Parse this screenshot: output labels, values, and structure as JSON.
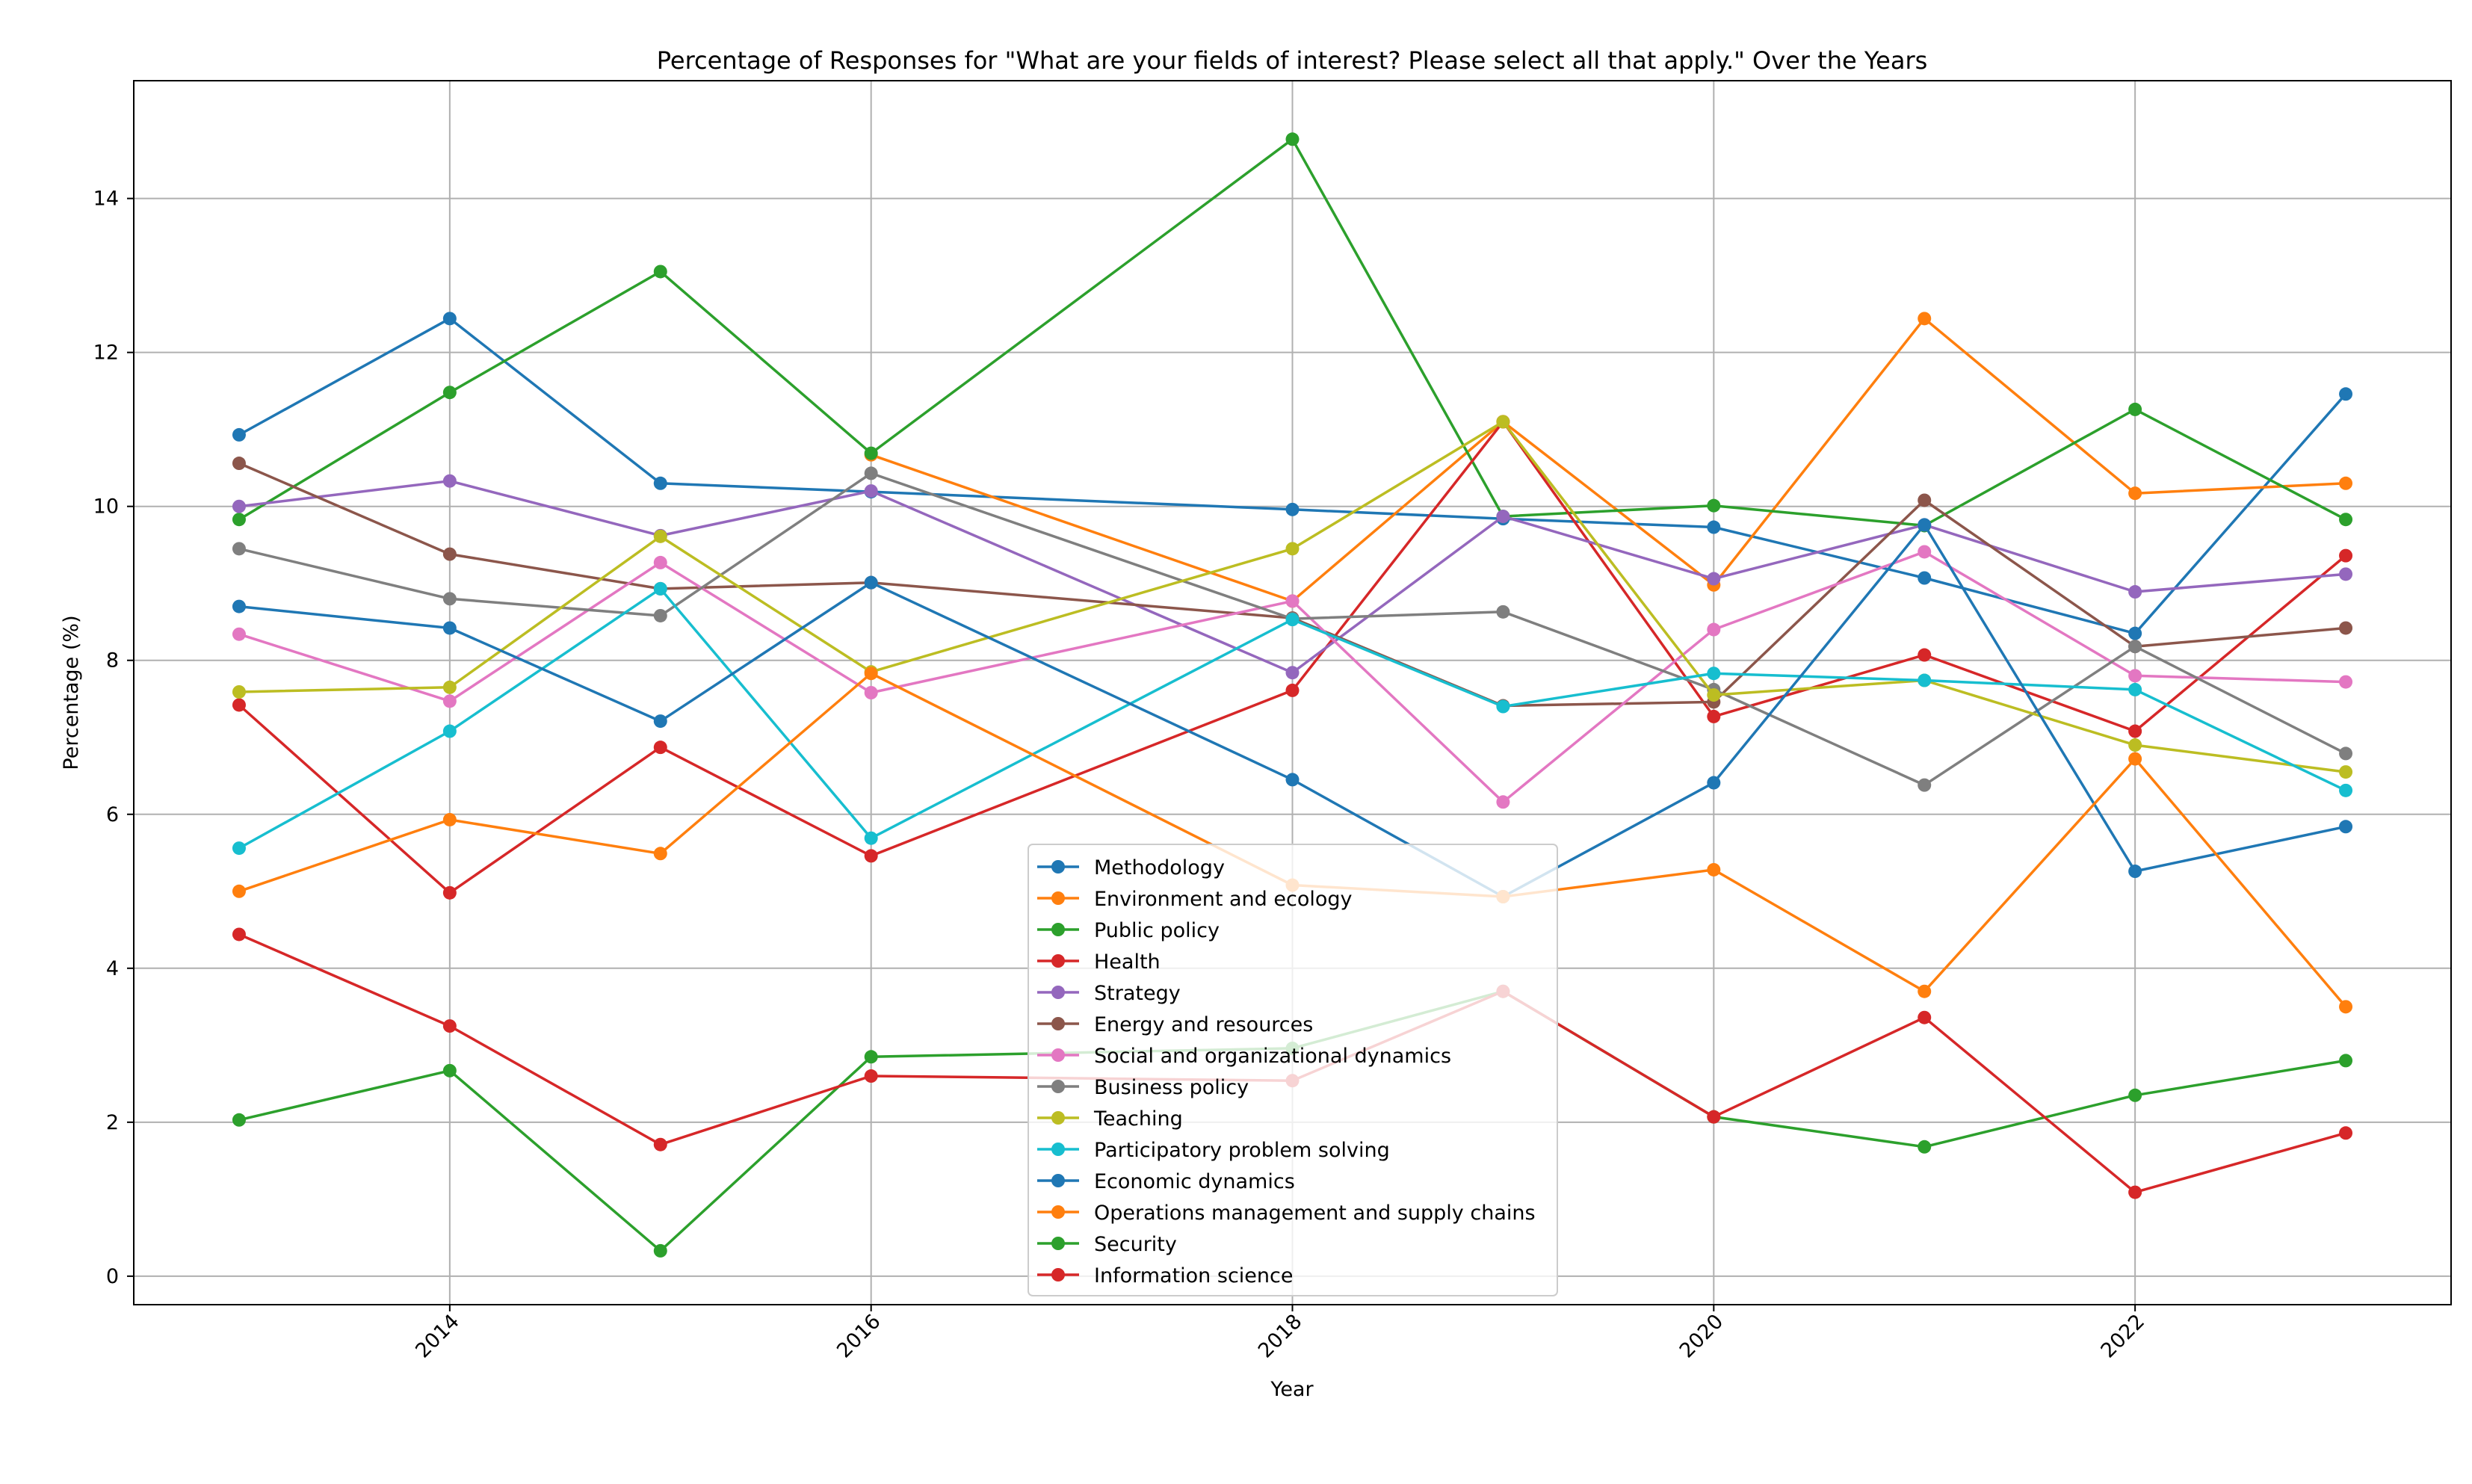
{
  "chart_data": {
    "type": "line",
    "title": "Percentage of Responses for \"What are your fields of interest? Please select all that apply.\" Over the Years",
    "xlabel": "Year",
    "ylabel": "Percentage (%)",
    "x": [
      2013,
      2014,
      2015,
      2016,
      2018,
      2019,
      2020,
      2021,
      2022,
      2023
    ],
    "x_ticks": [
      2014,
      2016,
      2018,
      2020,
      2022
    ],
    "x_tick_labels": [
      "2014",
      "2016",
      "2018",
      "2020",
      "2022"
    ],
    "y_ticks": [
      0,
      2,
      4,
      6,
      8,
      10,
      12,
      14
    ],
    "y_tick_labels": [
      "0",
      "2",
      "4",
      "6",
      "8",
      "10",
      "12",
      "14"
    ],
    "xlim": [
      2012.5,
      2023.5
    ],
    "ylim": [
      -0.37,
      15.53
    ],
    "grid": true,
    "legend_position": "bottom-center",
    "series": [
      {
        "name": "Methodology",
        "color": "#1f77b4",
        "values": [
          10.93,
          12.44,
          10.3,
          10.19,
          9.96,
          9.84,
          9.73,
          9.07,
          8.35,
          11.46
        ]
      },
      {
        "name": "Environment and ecology",
        "color": "#ff7f0e",
        "values": [
          null,
          null,
          null,
          10.67,
          8.77,
          11.1,
          8.98,
          12.44,
          10.17,
          10.3
        ]
      },
      {
        "name": "Public policy",
        "color": "#2ca02c",
        "values": [
          9.83,
          11.48,
          13.05,
          10.69,
          14.77,
          9.87,
          10.01,
          9.75,
          11.26,
          9.83
        ]
      },
      {
        "name": "Health",
        "color": "#d62728",
        "values": [
          7.42,
          4.98,
          6.87,
          5.46,
          7.61,
          11.1,
          7.27,
          8.07,
          7.08,
          9.36
        ]
      },
      {
        "name": "Strategy",
        "color": "#9467bd",
        "values": [
          10.0,
          10.33,
          9.62,
          10.2,
          7.84,
          9.87,
          9.06,
          9.76,
          8.89,
          9.12
        ]
      },
      {
        "name": "Energy and resources",
        "color": "#8c564b",
        "values": [
          10.56,
          9.38,
          8.93,
          9.01,
          8.55,
          7.41,
          7.46,
          10.08,
          8.18,
          8.42
        ]
      },
      {
        "name": "Social and organizational dynamics",
        "color": "#e377c2",
        "values": [
          8.34,
          7.47,
          9.27,
          7.58,
          8.77,
          6.16,
          8.4,
          9.41,
          7.8,
          7.72
        ]
      },
      {
        "name": "Business policy",
        "color": "#7f7f7f",
        "values": [
          9.45,
          8.8,
          8.58,
          10.43,
          8.54,
          8.63,
          7.62,
          6.38,
          8.18,
          6.79
        ]
      },
      {
        "name": "Teaching",
        "color": "#bcbd22",
        "values": [
          7.59,
          7.65,
          9.61,
          7.85,
          9.45,
          11.1,
          7.55,
          7.74,
          6.9,
          6.55
        ]
      },
      {
        "name": "Participatory problem solving",
        "color": "#17becf",
        "values": [
          5.56,
          7.08,
          8.93,
          5.69,
          8.53,
          7.4,
          7.83,
          7.74,
          7.62,
          6.31
        ]
      },
      {
        "name": "Economic dynamics",
        "color": "#1f77b4",
        "values": [
          8.7,
          8.42,
          7.21,
          9.01,
          6.45,
          4.93,
          6.41,
          9.76,
          5.26,
          5.84
        ]
      },
      {
        "name": "Operations management and supply chains",
        "color": "#ff7f0e",
        "values": [
          5.0,
          5.93,
          5.49,
          7.83,
          5.08,
          4.93,
          5.28,
          3.7,
          6.72,
          3.5
        ]
      },
      {
        "name": "Security",
        "color": "#2ca02c",
        "values": [
          2.03,
          2.67,
          0.33,
          2.85,
          2.96,
          3.7,
          2.07,
          1.68,
          2.35,
          2.8
        ]
      },
      {
        "name": "Information science",
        "color": "#d62728",
        "values": [
          4.44,
          3.25,
          1.71,
          2.6,
          2.54,
          3.7,
          2.07,
          3.36,
          1.09,
          1.86
        ]
      }
    ]
  }
}
